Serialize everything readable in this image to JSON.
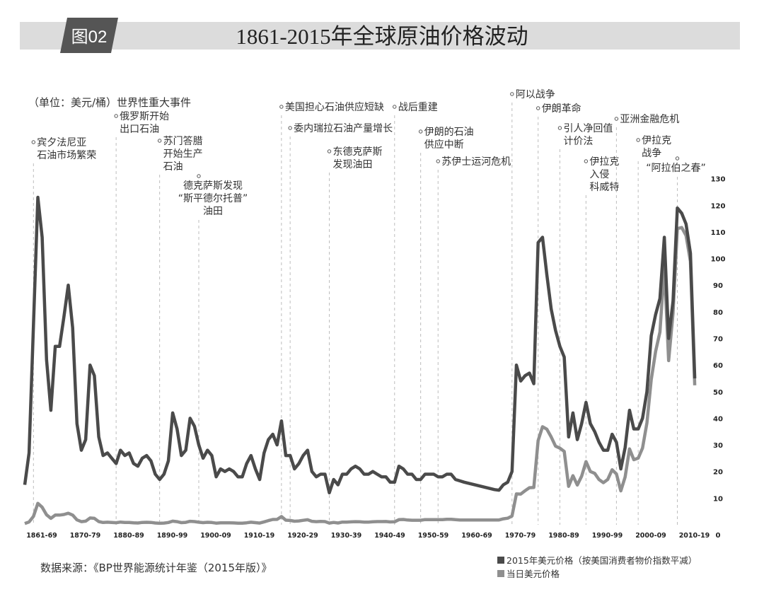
{
  "header": {
    "badge": "图02",
    "title": "1861-2015年全球原油价格波动"
  },
  "unit_label": "（单位：美元/桶）世界性重大事件",
  "source": "数据来源：《BP世界能源统计年鉴（2015年版）》",
  "chart_data": {
    "type": "line",
    "title": "1861-2015年全球原油价格波动",
    "ylabel": "（单位：美元/桶）",
    "xlabel": "",
    "x_start": 1861,
    "x_end": 2015,
    "ylim": [
      0,
      130
    ],
    "y_axis_position": "right",
    "y_ticks": [
      "0",
      "10",
      "20",
      "30",
      "40",
      "50",
      "60",
      "70",
      "80",
      "90",
      "100",
      "110",
      "120",
      "130"
    ],
    "x_tick_labels": [
      "1861-69",
      "1870-79",
      "1880-89",
      "1890-99",
      "1900-09",
      "1910-19",
      "1920-29",
      "1930-39",
      "1940-49",
      "1950-59",
      "1960-69",
      "1970-79",
      "1980-89",
      "1990-99",
      "2000-09",
      "2010-19"
    ],
    "grid": false,
    "legend_position": "bottom-right",
    "series": [
      {
        "name": "2015年美元价格（按美国消费者物价指数平减）",
        "color": "#4a4a4a",
        "values": [
          15,
          27,
          75,
          123,
          108,
          62,
          43,
          67,
          67,
          78,
          90,
          74,
          38,
          28,
          32,
          60,
          56,
          33,
          26,
          27,
          25,
          23,
          28,
          26,
          27,
          23,
          22,
          25,
          26,
          24,
          19,
          17,
          19,
          24,
          42,
          36,
          26,
          28,
          40,
          37,
          30,
          25,
          28,
          26,
          18,
          21,
          20,
          21,
          20,
          18,
          18,
          23,
          26,
          21,
          17,
          27,
          32,
          34,
          30,
          39,
          26,
          26,
          21,
          23,
          26,
          28,
          20,
          18,
          19,
          19,
          12,
          17,
          15,
          19,
          19,
          21,
          22,
          21,
          19,
          19,
          20,
          19,
          18,
          18,
          16,
          16,
          22,
          21,
          19,
          19,
          17,
          17,
          19,
          19,
          19,
          18,
          18,
          19,
          19,
          17,
          16.5,
          16,
          15.6,
          15.2,
          14.8,
          14.4,
          14,
          13.6,
          13.2,
          13,
          15,
          16,
          20,
          60,
          54,
          56,
          57,
          53,
          106,
          108,
          94,
          81,
          73,
          67,
          63,
          33,
          42,
          32,
          38,
          46,
          38,
          35,
          31,
          28,
          28,
          34,
          31,
          21,
          29,
          43,
          36,
          36,
          40,
          50,
          71,
          79,
          85,
          108,
          70,
          84,
          119,
          117,
          113,
          102,
          55
        ]
      },
      {
        "name": "当日美元价格",
        "color": "#8f8f8f",
        "values": [
          0.49,
          1.05,
          3.15,
          8.06,
          6.59,
          3.74,
          2.41,
          3.63,
          3.64,
          3.86,
          4.34,
          3.64,
          1.83,
          1.17,
          1.35,
          2.56,
          2.42,
          1.19,
          0.86,
          0.95,
          0.86,
          0.78,
          1.0,
          0.84,
          0.88,
          0.71,
          0.67,
          0.88,
          0.94,
          0.87,
          0.67,
          0.56,
          0.64,
          0.84,
          1.36,
          1.18,
          0.79,
          0.91,
          1.29,
          1.19,
          0.96,
          0.8,
          0.94,
          0.86,
          0.62,
          0.73,
          0.72,
          0.72,
          0.7,
          0.61,
          0.61,
          0.74,
          0.95,
          0.81,
          0.64,
          1.1,
          1.56,
          1.98,
          2.01,
          3.07,
          1.73,
          1.61,
          1.34,
          1.43,
          1.68,
          1.88,
          1.3,
          1.17,
          1.27,
          1.19,
          0.65,
          0.87,
          0.67,
          1.0,
          0.97,
          1.09,
          1.18,
          1.13,
          1.02,
          1.02,
          1.14,
          1.19,
          1.2,
          1.21,
          1.05,
          1.12,
          1.9,
          1.99,
          1.78,
          1.71,
          1.71,
          1.71,
          1.93,
          1.93,
          1.93,
          1.93,
          1.9,
          2.08,
          2.08,
          1.9,
          1.8,
          1.8,
          1.8,
          1.8,
          1.8,
          1.8,
          1.8,
          1.8,
          1.8,
          1.8,
          2.24,
          2.48,
          3.29,
          11.58,
          11.53,
          12.8,
          13.92,
          14.02,
          31.61,
          36.83,
          35.93,
          32.97,
          29.55,
          28.78,
          27.56,
          14.43,
          18.44,
          14.92,
          18.23,
          23.73,
          20.0,
          19.32,
          16.97,
          15.82,
          17.02,
          20.67,
          19.09,
          12.72,
          17.97,
          28.5,
          24.44,
          25.02,
          28.83,
          38.27,
          54.52,
          65.14,
          72.39,
          97.26,
          61.67,
          79.5,
          111.26,
          111.67,
          108.66,
          98.95,
          52.39
        ]
      }
    ],
    "events": [
      {
        "year": 1863,
        "lines": [
          "宾夕法尼亚",
          "石油市场繁荣"
        ]
      },
      {
        "year": 1882,
        "lines": [
          "俄罗斯开始",
          "出口石油"
        ]
      },
      {
        "year": 1892,
        "lines": [
          "苏门答腊",
          "开始生产",
          "石油"
        ]
      },
      {
        "year": 1901,
        "lines": [
          "德克萨斯发现",
          "“斯平德尔托普”",
          "油田"
        ]
      },
      {
        "year": 1920,
        "lines": [
          "美国担心石油供应短缺"
        ]
      },
      {
        "year": 1922,
        "lines": [
          "委内瑞拉石油产量增长"
        ]
      },
      {
        "year": 1931,
        "lines": [
          "东德克萨斯",
          "发现油田"
        ]
      },
      {
        "year": 1946,
        "lines": [
          "战后重建"
        ]
      },
      {
        "year": 1952,
        "lines": [
          "伊朗的石油",
          "供应中断"
        ]
      },
      {
        "year": 1956,
        "lines": [
          "苏伊士运河危机"
        ]
      },
      {
        "year": 1973,
        "lines": [
          "阿以战争"
        ]
      },
      {
        "year": 1979,
        "lines": [
          "伊朗革命"
        ]
      },
      {
        "year": 1984,
        "lines": [
          "引人净回值",
          "计价法"
        ]
      },
      {
        "year": 1990,
        "lines": [
          "伊拉克",
          "入侵",
          "科威特"
        ]
      },
      {
        "year": 1997,
        "lines": [
          "亚洲金融危机"
        ]
      },
      {
        "year": 2002,
        "lines": [
          "伊拉克",
          "战争"
        ]
      },
      {
        "year": 2011,
        "lines": [
          "“阿拉伯之春”"
        ]
      }
    ]
  }
}
